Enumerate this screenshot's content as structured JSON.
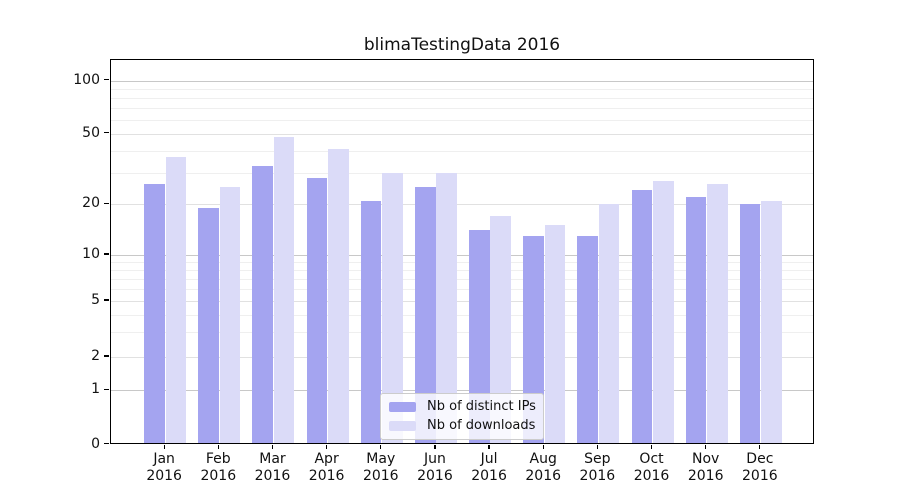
{
  "chart_data": {
    "type": "bar",
    "title": "blimaTestingData 2016",
    "categories": [
      "Jan",
      "Feb",
      "Mar",
      "Apr",
      "May",
      "Jun",
      "Jul",
      "Aug",
      "Sep",
      "Oct",
      "Nov",
      "Dec"
    ],
    "category_sublabel": "2016",
    "series": [
      {
        "name": "Nb of distinct IPs",
        "color": "#a4a4f0",
        "values": [
          26,
          19,
          33,
          28,
          21,
          25,
          14,
          13,
          13,
          24,
          22,
          20
        ]
      },
      {
        "name": "Nb of downloads",
        "color": "#dbdbf8",
        "values": [
          37,
          25,
          48,
          41,
          30,
          30,
          17,
          15,
          20,
          27,
          26,
          21
        ]
      }
    ],
    "xlabel": "",
    "ylabel": "",
    "ylim": [
      0,
      130
    ],
    "yaxis": {
      "scale": "log-with-zero",
      "ticks": [
        100,
        50,
        20,
        10,
        5,
        2,
        1,
        0
      ]
    },
    "grid": true,
    "legend_position": "lower-center-inside",
    "colors": {
      "grid_major": "#c8c8c8",
      "grid_mid": "#e1e1e1",
      "grid_minor": "#efefef",
      "axis": "#000000",
      "text": "#111111"
    }
  }
}
